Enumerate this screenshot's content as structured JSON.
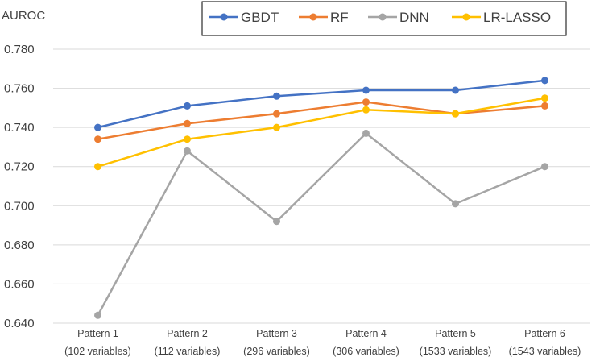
{
  "chart_data": {
    "type": "line",
    "title": "",
    "xlabel": "",
    "ylabel": "AUROC",
    "ylim": [
      0.64,
      0.78
    ],
    "yticks": [
      "0.640",
      "0.660",
      "0.680",
      "0.700",
      "0.720",
      "0.740",
      "0.760",
      "0.780"
    ],
    "grid": true,
    "legend_position": "top",
    "categories": [
      [
        "Pattern 1",
        "(102 variables)"
      ],
      [
        "Pattern 2",
        "(112 variables)"
      ],
      [
        "Pattern 3",
        "(296 variables)"
      ],
      [
        "Pattern 4",
        "(306 variables)"
      ],
      [
        "Pattern 5",
        "(1533 variables)"
      ],
      [
        "Pattern 6",
        "(1543 variables)"
      ]
    ],
    "series": [
      {
        "name": "GBDT",
        "color": "#4472C4",
        "values": [
          0.74,
          0.751,
          0.756,
          0.759,
          0.759,
          0.764
        ]
      },
      {
        "name": "RF",
        "color": "#ED7D31",
        "values": [
          0.734,
          0.742,
          0.747,
          0.753,
          0.747,
          0.751
        ]
      },
      {
        "name": "DNN",
        "color": "#A5A5A5",
        "values": [
          0.644,
          0.728,
          0.692,
          0.737,
          0.701,
          0.72
        ]
      },
      {
        "name": "LR-LASSO",
        "color": "#FFC000",
        "values": [
          0.72,
          0.734,
          0.74,
          0.749,
          0.747,
          0.755
        ]
      }
    ]
  }
}
